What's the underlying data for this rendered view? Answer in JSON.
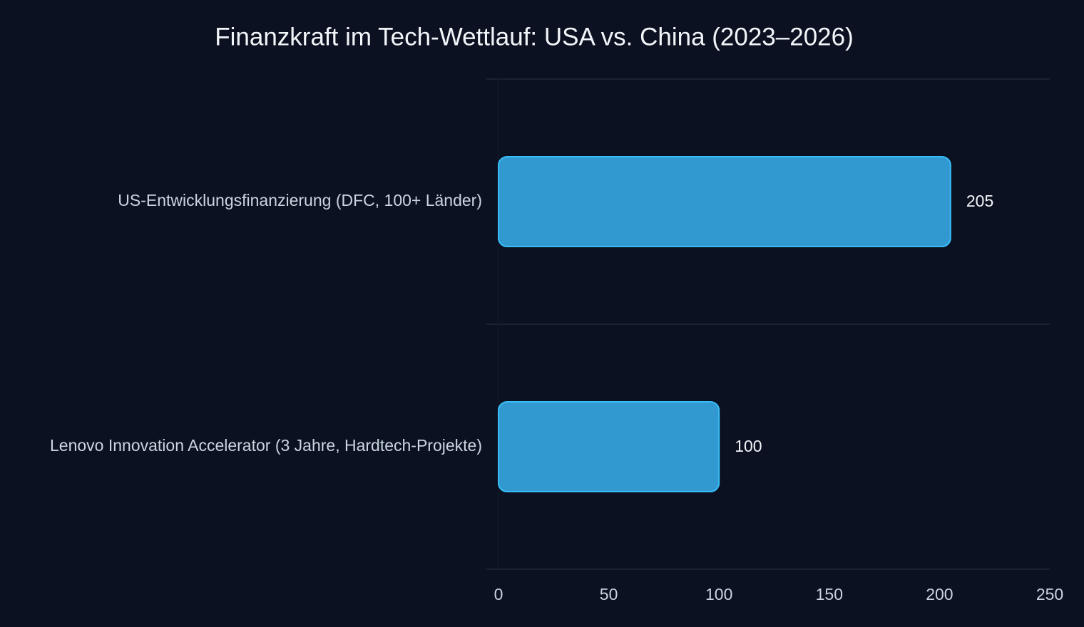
{
  "chart_data": {
    "type": "bar",
    "orientation": "horizontal",
    "title": "Finanzkraft im Tech-Wettlauf: USA vs. China (2023–2026)",
    "categories": [
      "US-Entwicklungsfinanzierung (DFC, 100+ Länder)",
      "Lenovo Innovation Accelerator (3 Jahre, Hardtech-Projekte)"
    ],
    "values": [
      205,
      100
    ],
    "color": "#3199cf",
    "xlim": [
      0,
      250
    ],
    "xticks": [
      0,
      50,
      100,
      150,
      200,
      250
    ]
  }
}
